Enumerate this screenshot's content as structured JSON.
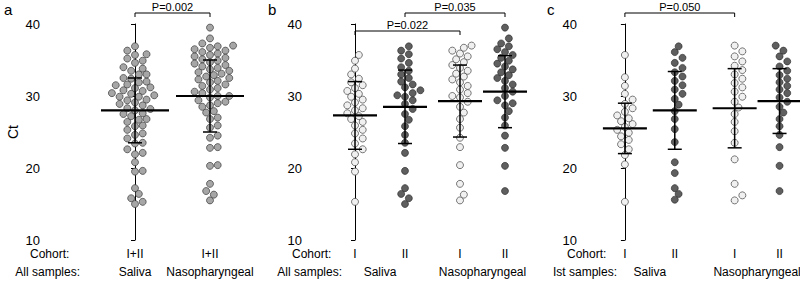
{
  "chart_data": [
    {
      "type": "scatter",
      "panel": "a",
      "y_label": "Ct",
      "ylim": [
        10,
        40
      ],
      "yticks": [
        10,
        20,
        30,
        40
      ],
      "grid": false,
      "marker": "circle",
      "row_labels": [
        "Cohort:",
        "All samples:"
      ],
      "groups": [
        {
          "cohort": "I+II",
          "color": "#a6a6a6",
          "mean": 28.0,
          "sd": 4.5,
          "values": [
            15.3,
            19.5,
            20.8,
            21.9,
            22.6,
            23.4,
            24.1,
            24.8,
            25.3,
            25.9,
            26.4,
            26.8,
            27.2,
            27.6,
            28.0,
            28.3,
            28.7,
            29.1,
            29.5,
            29.9,
            30.3,
            30.7,
            31.1,
            31.5,
            31.9,
            32.4,
            33.0,
            33.8,
            34.9,
            35.7,
            15.0,
            15.8,
            16.4,
            17.2,
            19.6,
            22.1,
            23.5,
            24.6,
            25.8,
            26.7,
            27.5,
            28.2,
            28.9,
            29.4,
            29.9,
            30.4,
            30.8,
            31.2,
            31.6,
            32.0,
            32.5,
            33.0,
            33.5,
            34.0,
            34.6,
            35.2,
            35.8,
            36.3,
            36.9,
            30.1
          ]
        },
        {
          "cohort": "I+II",
          "color": "#a6a6a6",
          "mean": 30.0,
          "sd": 5.0,
          "values": [
            15.5,
            16.3,
            17.8,
            20.4,
            22.9,
            24.2,
            25.6,
            26.8,
            27.7,
            28.5,
            29.2,
            29.8,
            30.4,
            30.9,
            31.4,
            31.9,
            32.3,
            32.7,
            33.1,
            33.5,
            33.9,
            34.3,
            34.7,
            35.1,
            35.5,
            35.9,
            36.3,
            36.7,
            37.0,
            30.0,
            16.8,
            20.3,
            22.8,
            24.5,
            25.9,
            27.0,
            27.9,
            28.7,
            29.4,
            30.0,
            30.6,
            31.1,
            31.6,
            32.1,
            32.5,
            32.9,
            33.3,
            33.7,
            34.1,
            34.5,
            34.9,
            35.3,
            35.7,
            36.1,
            36.5,
            36.9,
            37.3,
            38.0,
            39.5,
            29.0
          ]
        }
      ],
      "sample_labels": [
        {
          "label": "Saliva",
          "groups": [
            0
          ]
        },
        {
          "label": "Nasopharyngeal",
          "groups": [
            1
          ]
        }
      ],
      "p_values": [
        {
          "label": "P=0.002",
          "groups": [
            0,
            1
          ]
        }
      ]
    },
    {
      "type": "scatter",
      "panel": "b",
      "ylim": [
        10,
        40
      ],
      "yticks": [
        10,
        20,
        30,
        40
      ],
      "grid": false,
      "marker": "circle",
      "row_labels": [
        "Cohort:",
        "All samples:"
      ],
      "groups": [
        {
          "cohort": "I",
          "color": "#f0f0f0",
          "mean": 27.3,
          "sd": 4.7,
          "values": [
            15.3,
            19.5,
            20.8,
            21.9,
            22.6,
            23.4,
            24.1,
            24.8,
            25.3,
            25.9,
            26.4,
            26.8,
            27.2,
            27.6,
            28.0,
            28.3,
            28.7,
            29.1,
            29.5,
            29.9,
            30.3,
            30.7,
            31.1,
            31.5,
            31.9,
            32.4,
            33.0,
            33.8,
            34.9,
            35.7
          ]
        },
        {
          "cohort": "II",
          "color": "#5f5f5f",
          "mean": 28.5,
          "sd": 5.1,
          "values": [
            15.0,
            15.8,
            16.4,
            17.2,
            19.6,
            22.1,
            23.5,
            24.6,
            25.8,
            26.7,
            27.5,
            28.2,
            28.9,
            29.4,
            29.9,
            30.4,
            30.8,
            31.2,
            31.6,
            32.0,
            32.5,
            33.0,
            33.5,
            34.0,
            34.6,
            35.2,
            35.8,
            36.3,
            36.9,
            30.1
          ]
        },
        {
          "cohort": "I",
          "color": "#f0f0f0",
          "mean": 29.3,
          "sd": 5.0,
          "values": [
            15.5,
            16.3,
            17.8,
            20.4,
            22.9,
            24.2,
            25.6,
            26.8,
            27.7,
            28.5,
            29.2,
            29.8,
            30.4,
            30.9,
            31.4,
            31.9,
            32.3,
            32.7,
            33.1,
            33.5,
            33.9,
            34.3,
            34.7,
            35.1,
            35.5,
            35.9,
            36.3,
            36.7,
            37.0,
            30.0
          ]
        },
        {
          "cohort": "II",
          "color": "#5f5f5f",
          "mean": 30.6,
          "sd": 5.0,
          "values": [
            16.8,
            20.3,
            22.8,
            24.5,
            25.9,
            27.0,
            27.9,
            28.7,
            29.4,
            30.0,
            30.6,
            31.1,
            31.6,
            32.1,
            32.5,
            32.9,
            33.3,
            33.7,
            34.1,
            34.5,
            34.9,
            35.3,
            35.7,
            36.1,
            36.5,
            36.9,
            37.3,
            38.0,
            39.5,
            29.0
          ]
        }
      ],
      "sample_labels": [
        {
          "label": "Saliva",
          "groups": [
            0,
            1
          ]
        },
        {
          "label": "Nasopharyngeal",
          "groups": [
            2,
            3
          ]
        }
      ],
      "p_values": [
        {
          "label": "P=0.022",
          "groups": [
            0,
            2
          ]
        },
        {
          "label": "P=0.035",
          "groups": [
            1,
            3
          ]
        }
      ]
    },
    {
      "type": "scatter",
      "panel": "c",
      "ylim": [
        10,
        40
      ],
      "yticks": [
        10,
        20,
        30,
        40
      ],
      "grid": false,
      "marker": "circle",
      "row_labels": [
        "Cohort:",
        "Ist samples:"
      ],
      "groups": [
        {
          "cohort": "I",
          "color": "#f0f0f0",
          "mean": 25.5,
          "sd": 3.5,
          "values": [
            15.3,
            20.5,
            21.8,
            22.6,
            23.3,
            23.9,
            24.4,
            24.9,
            25.3,
            25.7,
            26.1,
            26.5,
            26.9,
            27.3,
            27.8,
            28.3,
            28.9,
            29.5,
            30.3,
            31.4,
            32.6,
            35.7
          ]
        },
        {
          "cohort": "II",
          "color": "#5f5f5f",
          "mean": 28.0,
          "sd": 5.4,
          "values": [
            15.6,
            16.4,
            17.2,
            19.3,
            20.8,
            23.6,
            25.4,
            26.8,
            27.9,
            28.8,
            29.6,
            30.3,
            30.9,
            31.5,
            32.1,
            32.7,
            33.3,
            33.9,
            34.6,
            35.3,
            36.1,
            36.9
          ]
        },
        {
          "cohort": "I",
          "color": "#f0f0f0",
          "mean": 28.3,
          "sd": 5.5,
          "values": [
            15.5,
            16.2,
            17.8,
            21.2,
            23.5,
            25.1,
            26.4,
            27.5,
            28.4,
            29.2,
            29.9,
            30.6,
            31.2,
            31.8,
            32.4,
            33.0,
            33.6,
            34.2,
            34.8,
            35.5,
            36.2,
            37.0
          ]
        },
        {
          "cohort": "II",
          "color": "#5f5f5f",
          "mean": 29.3,
          "sd": 4.5,
          "values": [
            16.8,
            20.3,
            22.9,
            24.6,
            25.8,
            26.8,
            27.7,
            28.5,
            29.2,
            29.8,
            30.4,
            30.9,
            31.4,
            31.9,
            32.4,
            32.9,
            33.5,
            34.1,
            34.8,
            35.5,
            36.3,
            37.0
          ]
        }
      ],
      "sample_labels": [
        {
          "label": "Saliva",
          "groups": [
            0,
            1
          ]
        },
        {
          "label": "Nasopharyngeal",
          "groups": [
            2,
            3
          ]
        }
      ],
      "p_values": [
        {
          "label": "P=0.050",
          "groups": [
            0,
            2
          ]
        }
      ]
    }
  ]
}
